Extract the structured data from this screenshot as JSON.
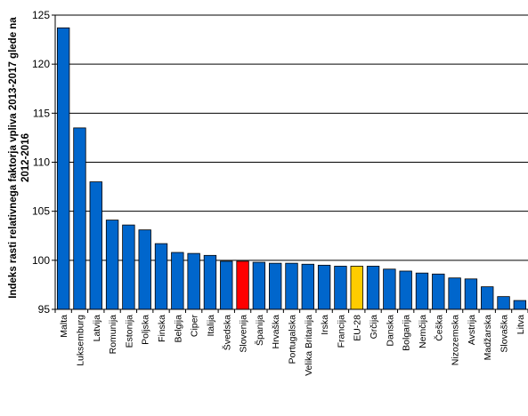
{
  "chart_data": {
    "type": "bar",
    "title": "",
    "xlabel": "",
    "ylabel": "Indeks rasti relativnega faktorja vpliva 2013-2017 glede na 2012-2016",
    "ylim": [
      95,
      125
    ],
    "yticks": [
      95,
      100,
      105,
      110,
      115,
      120,
      125
    ],
    "grid": "horizontal",
    "legend": "none",
    "categories": [
      "Malta",
      "Luksemburg",
      "Latvija",
      "Romunija",
      "Estonija",
      "Poljska",
      "Finska",
      "Belgija",
      "Ciper",
      "Italija",
      "Švedska",
      "Slovenija",
      "Španija",
      "Hrvaška",
      "Portugalska",
      "Velika Britanija",
      "Irska",
      "Francija",
      "EU-28",
      "Grčija",
      "Danska",
      "Bolgarija",
      "Nemčija",
      "Češka",
      "Nizozemska",
      "Avstrija",
      "Madžarska",
      "Slovaška",
      "Litva"
    ],
    "values": [
      123.7,
      113.5,
      108.0,
      104.1,
      103.6,
      103.1,
      101.7,
      100.8,
      100.7,
      100.5,
      99.9,
      99.9,
      99.8,
      99.7,
      99.7,
      99.6,
      99.5,
      99.4,
      99.4,
      99.4,
      99.1,
      98.9,
      98.7,
      98.6,
      98.2,
      98.1,
      97.3,
      96.3,
      95.9
    ],
    "colors": {
      "default": "#0066cc",
      "Slovenija": "#ff0000",
      "EU-28": "#ffcc00",
      "outline": "#000000",
      "grid": "#000000"
    }
  }
}
